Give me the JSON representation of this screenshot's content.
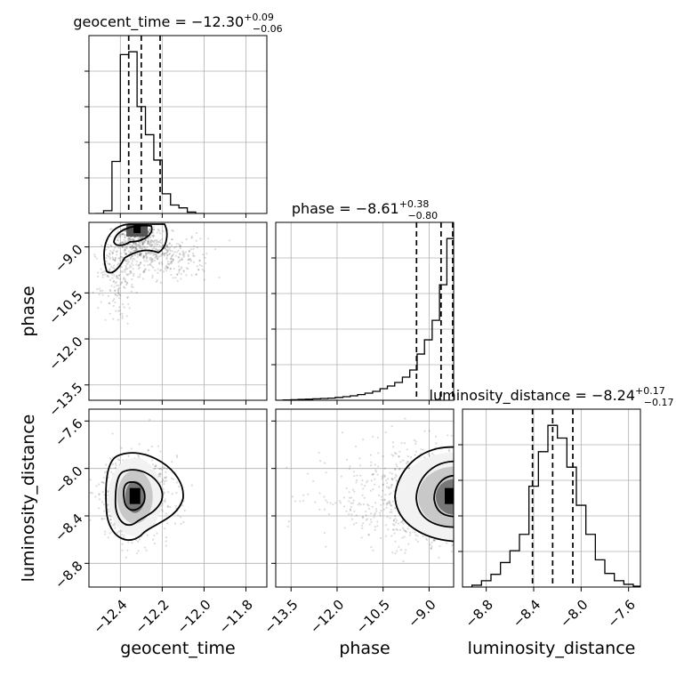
{
  "chart_data": {
    "type": "corner",
    "parameters": [
      "geocent_time",
      "phase",
      "luminosity_distance"
    ],
    "titles": [
      {
        "name": "geocent_time",
        "median": "−12.30",
        "plus": "+0.09",
        "minus": "−0.06"
      },
      {
        "name": "phase",
        "median": "−8.61",
        "plus": "+0.38",
        "minus": "−0.80"
      },
      {
        "name": "luminosity_distance",
        "median": "−8.24",
        "plus": "+0.17",
        "minus": "−0.17"
      }
    ],
    "axes": {
      "geocent_time": {
        "range": [
          -12.55,
          -11.7
        ],
        "ticks": [
          -12.4,
          -12.2,
          -12.0,
          -11.8
        ],
        "tick_labels": [
          "−12.4",
          "−12.2",
          "−12.0",
          "−11.8"
        ],
        "label": "geocent_time"
      },
      "phase": {
        "range": [
          -14.0,
          -8.2
        ],
        "ticks": [
          -13.5,
          -12.0,
          -10.5,
          -9.0
        ],
        "tick_labels": [
          "−13.5",
          "−12.0",
          "−10.5",
          "−9.0"
        ],
        "label": "phase"
      },
      "luminosity_distance": {
        "range": [
          -9.0,
          -7.5
        ],
        "ticks": [
          -8.8,
          -8.4,
          -8.0,
          -7.6
        ],
        "tick_labels": [
          "−8.8",
          "−8.4",
          "−8.0",
          "−7.6"
        ],
        "label": "luminosity_distance"
      }
    },
    "histograms": {
      "geocent_time": {
        "bins": [
          -12.52,
          -12.48,
          -12.44,
          -12.4,
          -12.36,
          -12.32,
          -12.28,
          -12.24,
          -12.2,
          -12.16,
          -12.12,
          -12.08,
          -12.04,
          -12.0
        ],
        "counts": [
          0,
          0.2,
          3.7,
          11.3,
          11.5,
          7.6,
          5.6,
          3.8,
          1.4,
          0.6,
          0.4,
          0.1,
          0
        ],
        "quantiles": [
          -12.36,
          -12.3,
          -12.21
        ]
      },
      "phase": {
        "bins": [
          -14.0,
          -13.76,
          -13.51,
          -13.27,
          -13.03,
          -12.79,
          -12.54,
          -12.3,
          -12.06,
          -11.81,
          -11.57,
          -11.33,
          -11.09,
          -10.84,
          -10.6,
          -10.36,
          -10.12,
          -9.87,
          -9.63,
          -9.39,
          -9.15,
          -8.9,
          -8.66,
          -8.42,
          -8.2
        ],
        "counts": [
          0,
          0.02,
          0.03,
          0.05,
          0.06,
          0.08,
          0.1,
          0.12,
          0.16,
          0.2,
          0.25,
          0.32,
          0.4,
          0.5,
          0.65,
          0.8,
          1.0,
          1.3,
          1.7,
          2.6,
          3.4,
          4.5,
          6.5,
          9.1
        ],
        "quantiles": [
          -9.41,
          -8.61,
          -8.23
        ]
      },
      "luminosity_distance": {
        "bins": [
          -9.0,
          -8.92,
          -8.84,
          -8.76,
          -8.68,
          -8.6,
          -8.52,
          -8.44,
          -8.36,
          -8.28,
          -8.2,
          -8.12,
          -8.04,
          -7.96,
          -7.88,
          -7.8,
          -7.72,
          -7.64,
          -7.56,
          -7.5
        ],
        "counts": [
          0,
          0.1,
          0.35,
          0.7,
          1.35,
          2.0,
          2.9,
          5.55,
          7.45,
          8.9,
          8.2,
          6.6,
          4.5,
          2.9,
          1.5,
          0.75,
          0.35,
          0.15,
          0.05
        ],
        "quantiles": [
          -8.41,
          -8.24,
          -8.07
        ]
      }
    },
    "contour_levels": [
      "0.5σ",
      "1σ",
      "1.5σ",
      "2σ"
    ],
    "scatter": "grey sample points behind filled 2D density contours",
    "grid": true
  }
}
